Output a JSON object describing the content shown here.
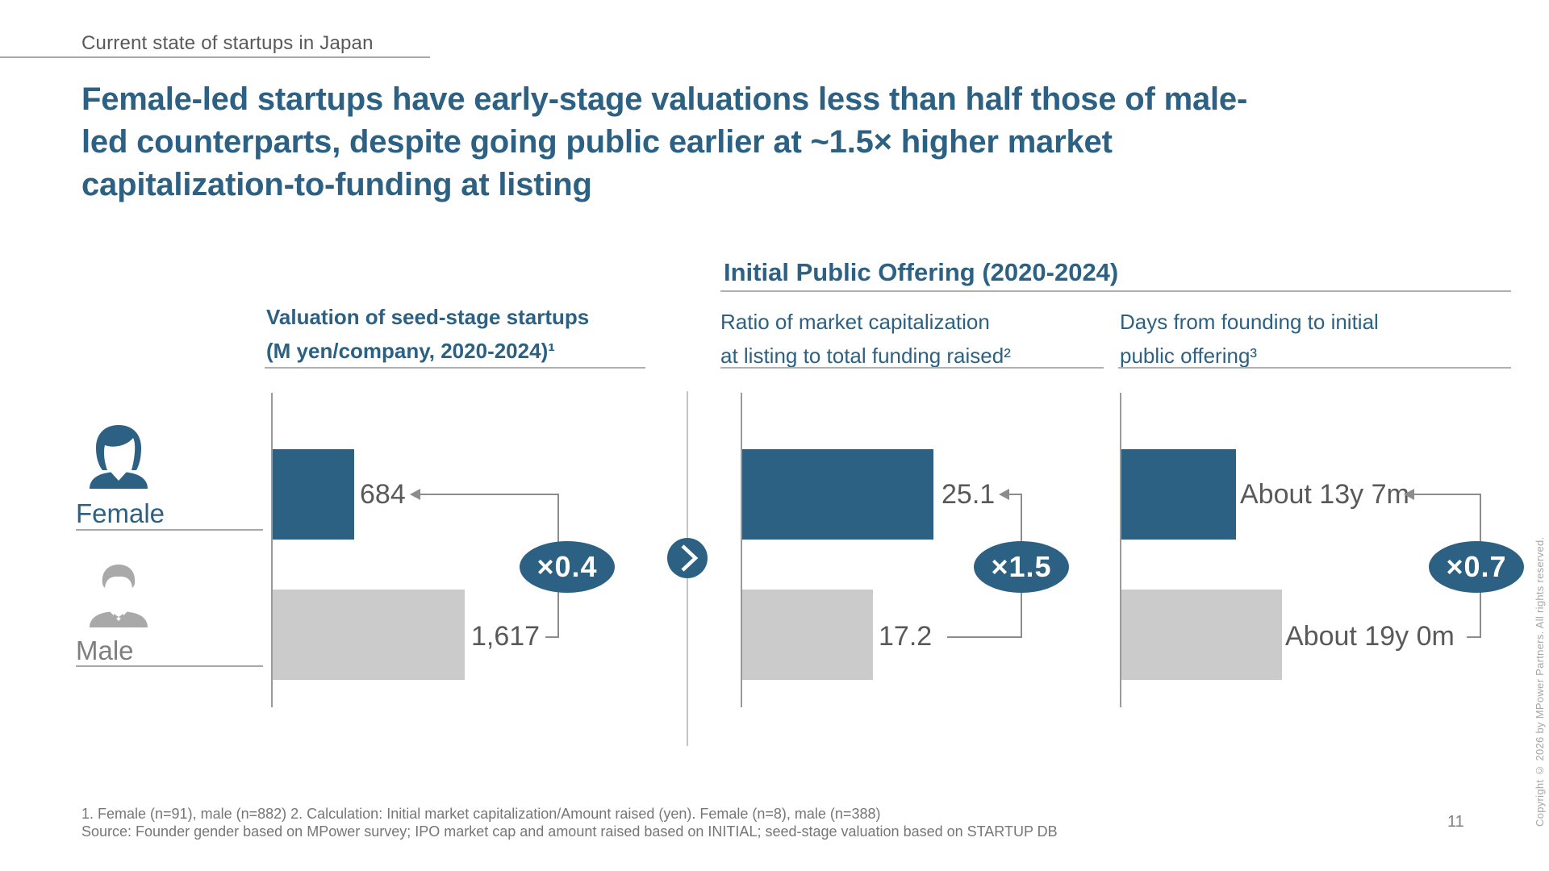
{
  "kicker": "Current state of startups in Japan",
  "title": {
    "line1": "Female-led startups have early-stage valuations less than half those of male-",
    "line2": "led counterparts, despite going public earlier at ~1.5× higher market",
    "line3": "capitalization-to-funding at listing"
  },
  "ipo_group_header": "Initial Public Offering (2020-2024)",
  "row_labels": {
    "female": "Female",
    "male": "Male"
  },
  "chart_data": [
    {
      "type": "bar",
      "orientation": "horizontal",
      "title_line1": "Valuation of seed-stage startups",
      "title_line2": "(M yen/company, 2020-2024)¹",
      "categories": [
        "Female",
        "Male"
      ],
      "values_num": [
        684,
        1617
      ],
      "labels": [
        "684",
        "1,617"
      ],
      "multiplier": "×0.4",
      "unit": "M yen/company",
      "grid": false,
      "legend": "none"
    },
    {
      "type": "bar",
      "orientation": "horizontal",
      "group": "Initial Public Offering (2020-2024)",
      "title_line1": "Ratio of market capitalization",
      "title_line2": "at listing to total funding raised²",
      "categories": [
        "Female",
        "Male"
      ],
      "values_num": [
        25.1,
        17.2
      ],
      "labels": [
        "25.1",
        "17.2"
      ],
      "multiplier": "×1.5",
      "unit": "x",
      "grid": false,
      "legend": "none"
    },
    {
      "type": "bar",
      "orientation": "horizontal",
      "group": "Initial Public Offering (2020-2024)",
      "title_line1": "Days from founding to initial",
      "title_line2": "public offering³",
      "categories": [
        "Female",
        "Male"
      ],
      "values_num": [
        163,
        228
      ],
      "values_unit": "months",
      "labels": [
        "About 13y 7m",
        "About 19y 0m"
      ],
      "multiplier": "×0.7",
      "grid": false,
      "legend": "none"
    }
  ],
  "footnotes": {
    "line1": "1. Female (n=91), male (n=882) 2. Calculation: Initial market capitalization/Amount raised (yen). Female (n=8), male (n=388)",
    "source": "Source: Founder gender based on MPower survey; IPO market cap and amount raised based on INITIAL; seed-stage valuation based on STARTUP DB"
  },
  "page_number": "11",
  "copyright": "Copyright © 2026 by MPower Partners. All rights reserved.",
  "colors": {
    "primary": "#2d6183",
    "bar_gray": "#cbcbcb",
    "male_icon_gray": "#a9a9a9",
    "value_text": "#595959",
    "label_gray": "#7f7f7f",
    "line_gray": "#b0b0b0",
    "bracket_gray": "#8c8c8c",
    "footnote_gray": "#767676",
    "copyright_gray": "#a6a6a6"
  }
}
